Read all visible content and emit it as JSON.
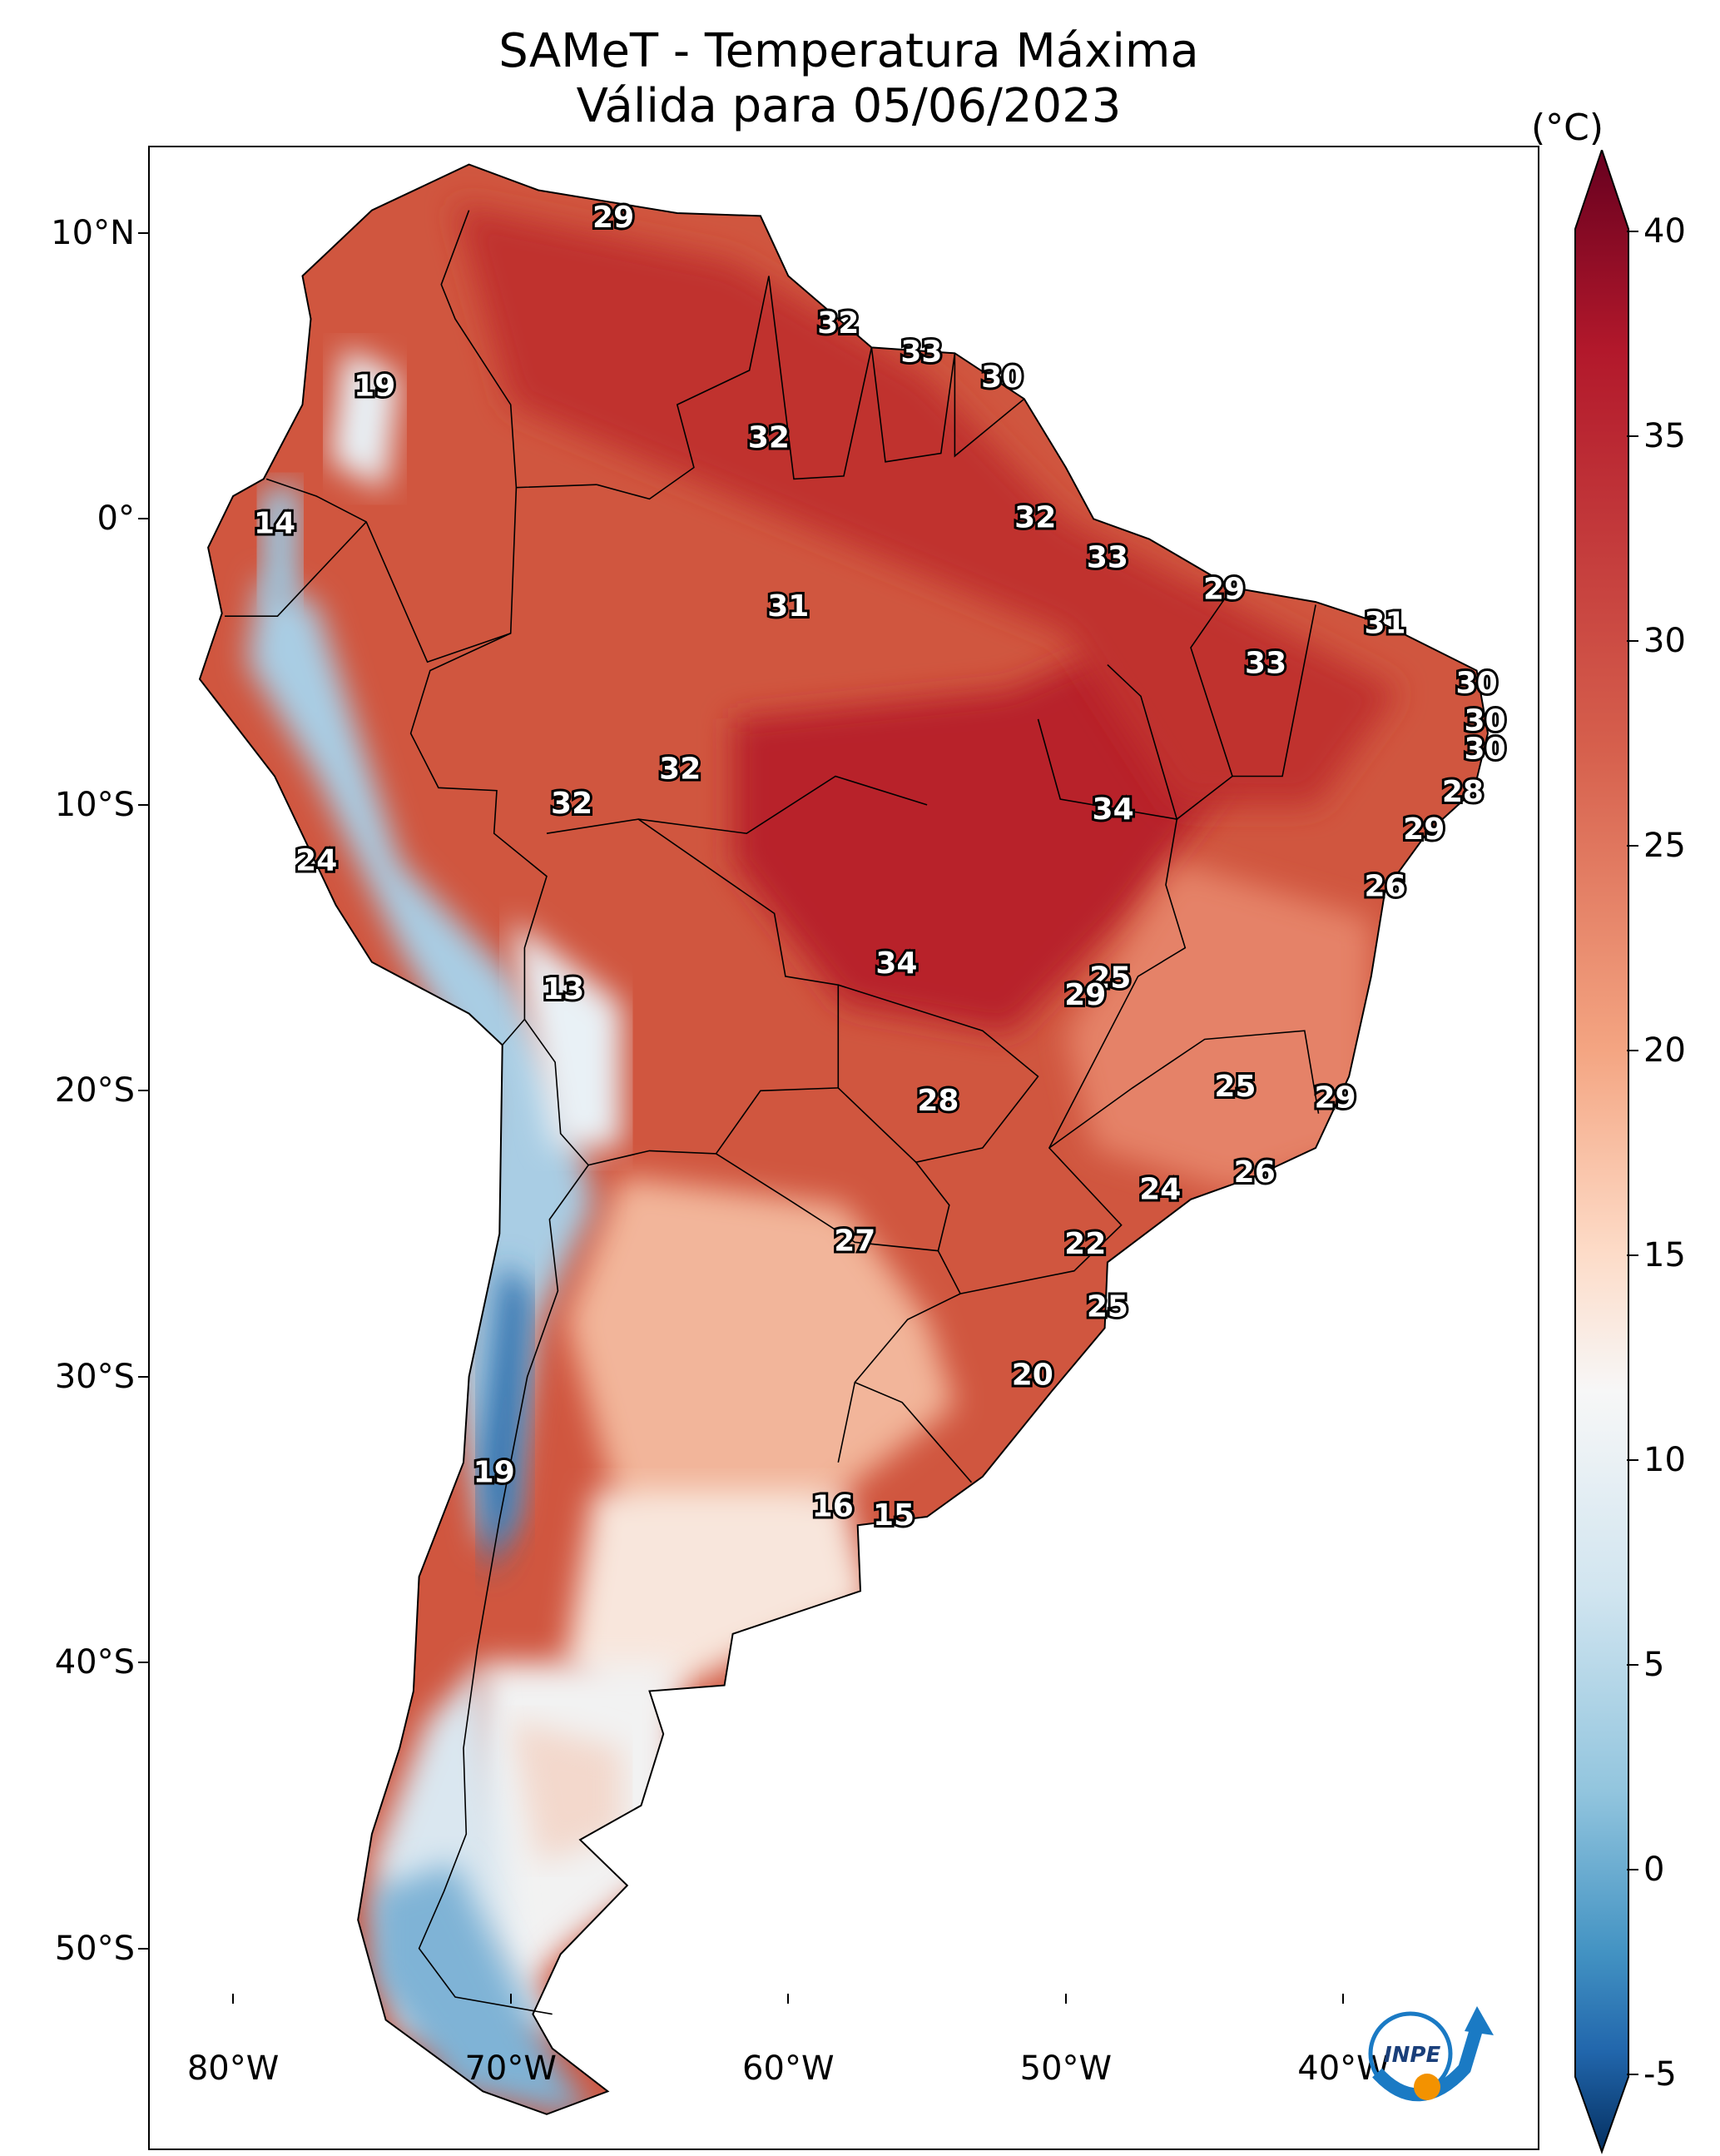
{
  "title": {
    "line1": "SAMeT - Temperatura Máxima",
    "line2": "Válida para 05/06/2023"
  },
  "map": {
    "lon_range": [
      -83,
      -33
    ],
    "lat_range": [
      -57,
      13
    ],
    "lat_labels": [
      {
        "value": 10,
        "text": "10°N"
      },
      {
        "value": 0,
        "text": "0°"
      },
      {
        "value": -10,
        "text": "10°S"
      },
      {
        "value": -20,
        "text": "20°S"
      },
      {
        "value": -30,
        "text": "30°S"
      },
      {
        "value": -40,
        "text": "40°S"
      },
      {
        "value": -50,
        "text": "50°S"
      }
    ],
    "lon_labels": [
      {
        "value": -80,
        "text": "80°W"
      },
      {
        "value": -70,
        "text": "70°W"
      },
      {
        "value": -60,
        "text": "60°W"
      },
      {
        "value": -50,
        "text": "50°W"
      },
      {
        "value": -40,
        "text": "40°W"
      }
    ],
    "city_values": [
      {
        "lon": -66.3,
        "lat": 10.5,
        "value": "29"
      },
      {
        "lon": -74.9,
        "lat": 4.6,
        "value": "19"
      },
      {
        "lon": -78.5,
        "lat": -0.2,
        "value": "14"
      },
      {
        "lon": -77.0,
        "lat": -12.0,
        "value": "24"
      },
      {
        "lon": -68.1,
        "lat": -16.5,
        "value": "13"
      },
      {
        "lon": -70.6,
        "lat": -33.4,
        "value": "19"
      },
      {
        "lon": -58.2,
        "lat": 6.8,
        "value": "32"
      },
      {
        "lon": -55.2,
        "lat": 5.8,
        "value": "33"
      },
      {
        "lon": -52.3,
        "lat": 4.9,
        "value": "30"
      },
      {
        "lon": -60.7,
        "lat": 2.8,
        "value": "32"
      },
      {
        "lon": -51.1,
        "lat": 0.0,
        "value": "32"
      },
      {
        "lon": -48.5,
        "lat": -1.4,
        "value": "33"
      },
      {
        "lon": -44.3,
        "lat": -2.5,
        "value": "29"
      },
      {
        "lon": -38.5,
        "lat": -3.7,
        "value": "31"
      },
      {
        "lon": -42.8,
        "lat": -5.1,
        "value": "33"
      },
      {
        "lon": -35.2,
        "lat": -5.8,
        "value": "30"
      },
      {
        "lon": -34.9,
        "lat": -7.1,
        "value": "30"
      },
      {
        "lon": -34.9,
        "lat": -8.1,
        "value": "30"
      },
      {
        "lon": -35.7,
        "lat": -9.6,
        "value": "28"
      },
      {
        "lon": -37.1,
        "lat": -10.9,
        "value": "29"
      },
      {
        "lon": -38.5,
        "lat": -12.9,
        "value": "26"
      },
      {
        "lon": -60.0,
        "lat": -3.1,
        "value": "31"
      },
      {
        "lon": -63.9,
        "lat": -8.8,
        "value": "32"
      },
      {
        "lon": -67.8,
        "lat": -10.0,
        "value": "32"
      },
      {
        "lon": -48.3,
        "lat": -10.2,
        "value": "34"
      },
      {
        "lon": -56.1,
        "lat": -15.6,
        "value": "34"
      },
      {
        "lon": -48.4,
        "lat": -16.1,
        "value": "25"
      },
      {
        "lon": -49.3,
        "lat": -16.7,
        "value": "29"
      },
      {
        "lon": -54.6,
        "lat": -20.4,
        "value": "28"
      },
      {
        "lon": -43.9,
        "lat": -19.9,
        "value": "25"
      },
      {
        "lon": -40.3,
        "lat": -20.3,
        "value": "29"
      },
      {
        "lon": -43.2,
        "lat": -22.9,
        "value": "26"
      },
      {
        "lon": -46.6,
        "lat": -23.5,
        "value": "24"
      },
      {
        "lon": -49.3,
        "lat": -25.4,
        "value": "22"
      },
      {
        "lon": -57.6,
        "lat": -25.3,
        "value": "27"
      },
      {
        "lon": -48.5,
        "lat": -27.6,
        "value": "25"
      },
      {
        "lon": -51.2,
        "lat": -30.0,
        "value": "20"
      },
      {
        "lon": -58.4,
        "lat": -34.6,
        "value": "16"
      },
      {
        "lon": -56.2,
        "lat": -34.9,
        "value": "15"
      }
    ]
  },
  "colorbar": {
    "unit": "(°C)",
    "range": [
      -7,
      42
    ],
    "ticks": [
      {
        "value": 40,
        "text": "40"
      },
      {
        "value": 35,
        "text": "35"
      },
      {
        "value": 30,
        "text": "30"
      },
      {
        "value": 25,
        "text": "25"
      },
      {
        "value": 20,
        "text": "20"
      },
      {
        "value": 15,
        "text": "15"
      },
      {
        "value": 10,
        "text": "10"
      },
      {
        "value": 5,
        "text": "5"
      },
      {
        "value": 0,
        "text": "0"
      },
      {
        "value": -5,
        "text": "-5"
      }
    ],
    "colors": {
      "high": "#67001f",
      "warm": "#d6604d",
      "mid": "#f7f7f7",
      "cool": "#4393c3",
      "low": "#053061"
    }
  },
  "logo": {
    "text": "INPE"
  }
}
